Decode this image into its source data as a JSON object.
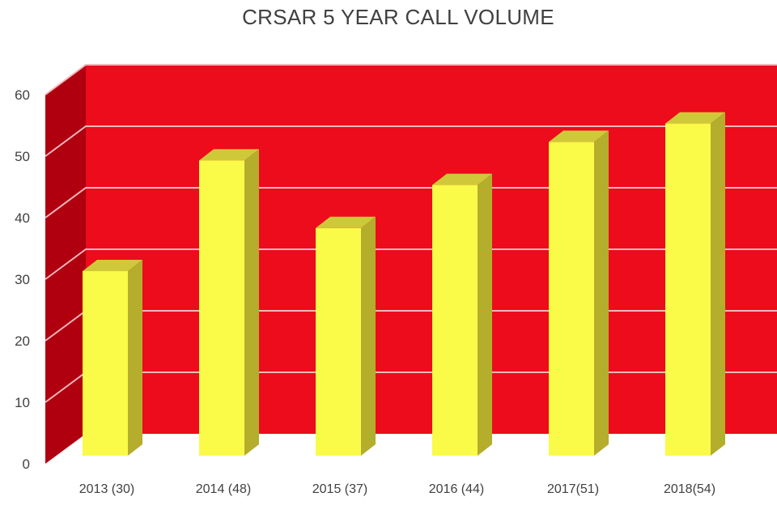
{
  "chart_data": {
    "type": "bar",
    "title": "CRSAR 5 YEAR CALL VOLUME",
    "categories": [
      "2013 (30)",
      "2014 (48)",
      "2015 (37)",
      "2016 (44)",
      "2017(51)",
      "2018(54)"
    ],
    "values": [
      30,
      48,
      37,
      44,
      51,
      54
    ],
    "yticks": [
      "0",
      "10",
      "20",
      "30",
      "40",
      "50",
      "60"
    ],
    "ylim": [
      0,
      60
    ],
    "grid": true,
    "style": "3d",
    "colors": {
      "back_wall": "#ec0c1c",
      "side_wall": "#b00010",
      "gridline": "#f2b8bc",
      "bar_front": "#fafa48",
      "bar_top": "#cfc93a",
      "bar_side": "#b5ad2c"
    }
  }
}
